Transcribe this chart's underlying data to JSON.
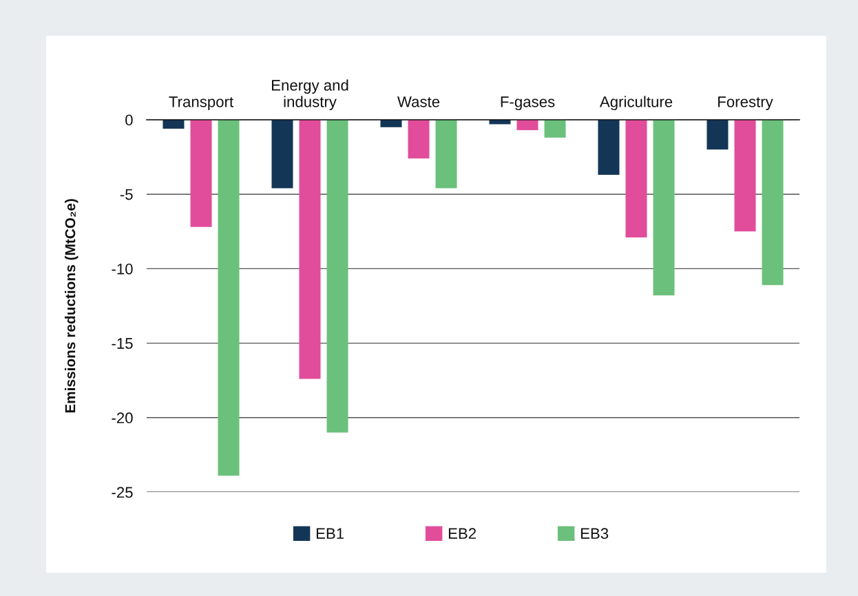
{
  "chart_data": {
    "type": "bar",
    "ylabel": "Emissions reductions (MtCO₂e)",
    "categories": [
      "Transport",
      "Energy and\nindustry",
      "Waste",
      "F-gases",
      "Agriculture",
      "Forestry"
    ],
    "series": [
      {
        "name": "EB1",
        "color": "#133657",
        "values": [
          -0.6,
          -4.6,
          -0.5,
          -0.3,
          -3.7,
          -2.0
        ]
      },
      {
        "name": "EB2",
        "color": "#e14d9b",
        "values": [
          -7.2,
          -17.4,
          -2.6,
          -0.7,
          -7.9,
          -7.5
        ]
      },
      {
        "name": "EB3",
        "color": "#6bc17b",
        "values": [
          -23.9,
          -21.0,
          -4.6,
          -1.2,
          -11.8,
          -11.1
        ]
      }
    ],
    "ylim": [
      -25,
      0
    ],
    "yticks": [
      0,
      -5,
      -10,
      -15,
      -20,
      -25
    ],
    "grid": "y",
    "legend": "bottom"
  }
}
